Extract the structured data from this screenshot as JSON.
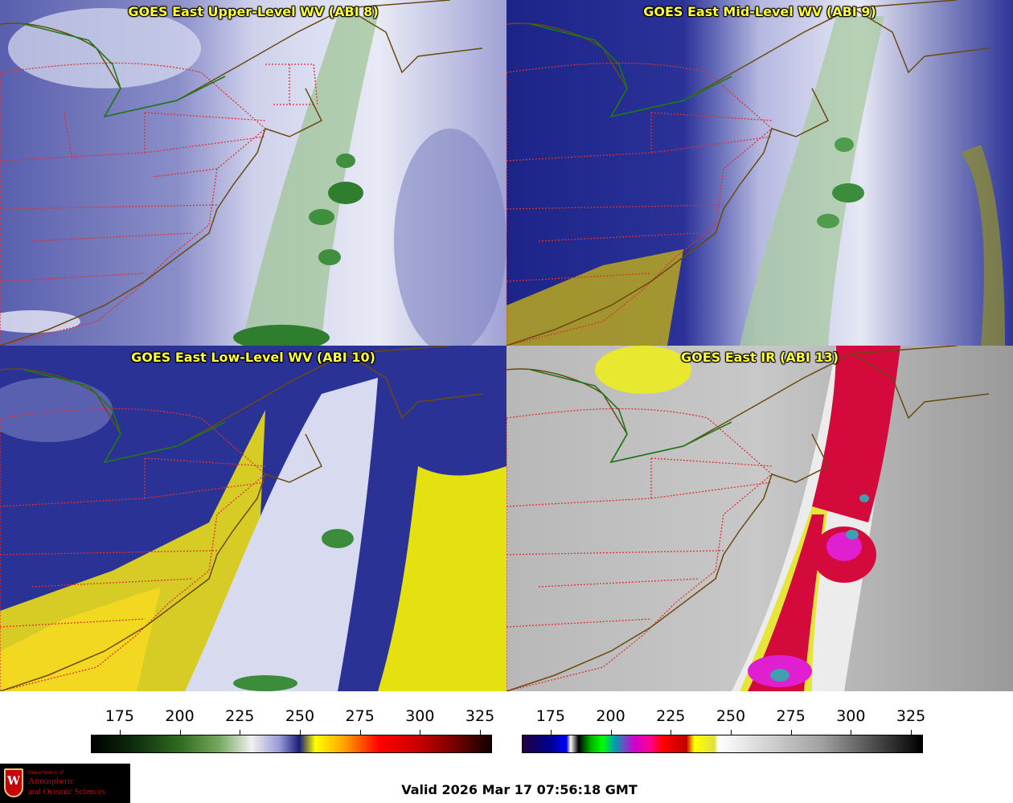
{
  "panels": [
    {
      "title": "GOES East Upper-Level WV (ABI 8)",
      "scheme": "wv_upper"
    },
    {
      "title": "GOES East Mid-Level WV (ABI 9)",
      "scheme": "wv_mid"
    },
    {
      "title": "GOES East Low-Level WV (ABI 10)",
      "scheme": "wv_low"
    },
    {
      "title": "GOES East IR (ABI 13)",
      "scheme": "ir"
    }
  ],
  "colorbars": {
    "wv": {
      "ticks": [
        "175",
        "200",
        "225",
        "250",
        "275",
        "300",
        "325"
      ],
      "min": 163,
      "max": 330
    },
    "ir": {
      "ticks": [
        "175",
        "200",
        "225",
        "250",
        "275",
        "300",
        "325"
      ],
      "min": 163,
      "max": 330
    }
  },
  "colors": {
    "state_border": "#e03030",
    "coastline": "#6b4a10",
    "canada_us_border": "#1a7a1a",
    "title_text": "#ffff33"
  },
  "footer": {
    "valid": "Valid 2026 Mar 17 07:56:18 GMT"
  },
  "logo": {
    "department": "Department of",
    "line1": "Atmospheric",
    "line2": "and Oceanic Sciences",
    "emblem_letter": "W"
  }
}
